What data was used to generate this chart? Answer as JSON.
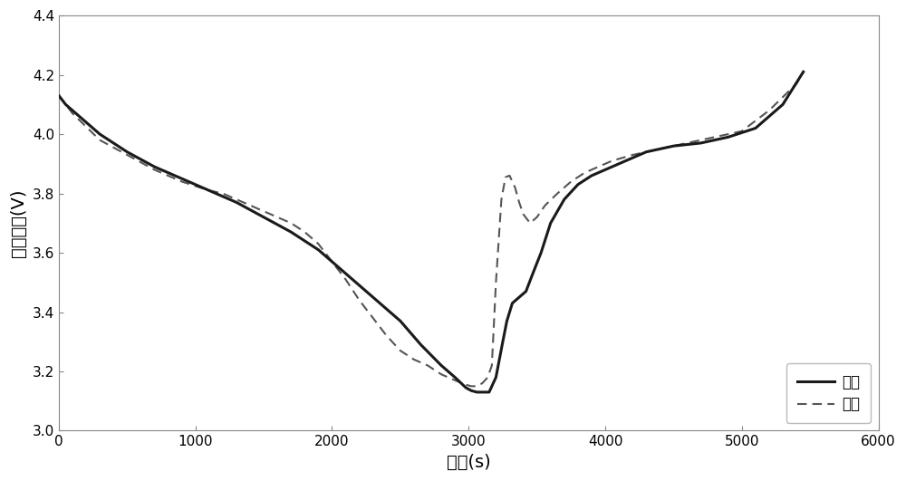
{
  "title": "",
  "xlabel": "时间(s)",
  "ylabel": "电压变化(V)",
  "xlim": [
    0,
    6000
  ],
  "ylim": [
    3.0,
    4.4
  ],
  "xticks": [
    0,
    1000,
    2000,
    3000,
    4000,
    5000,
    6000
  ],
  "yticks": [
    3.0,
    3.2,
    3.4,
    3.6,
    3.8,
    4.0,
    4.2,
    4.4
  ],
  "legend": [
    "模拟",
    "实验"
  ],
  "sim_x": [
    0,
    50,
    150,
    300,
    500,
    700,
    900,
    1100,
    1300,
    1500,
    1700,
    1900,
    2100,
    2300,
    2500,
    2650,
    2800,
    2900,
    2980,
    3020,
    3060,
    3100,
    3150,
    3200,
    3250,
    3280,
    3320,
    3370,
    3420,
    3470,
    3530,
    3600,
    3700,
    3800,
    3900,
    4000,
    4100,
    4200,
    4300,
    4500,
    4700,
    4900,
    5100,
    5300,
    5450
  ],
  "sim_y": [
    4.13,
    4.1,
    4.06,
    4.0,
    3.94,
    3.89,
    3.85,
    3.81,
    3.77,
    3.72,
    3.67,
    3.61,
    3.53,
    3.45,
    3.37,
    3.29,
    3.22,
    3.18,
    3.145,
    3.135,
    3.13,
    3.13,
    3.13,
    3.18,
    3.3,
    3.37,
    3.43,
    3.45,
    3.47,
    3.53,
    3.6,
    3.7,
    3.78,
    3.83,
    3.86,
    3.88,
    3.9,
    3.92,
    3.94,
    3.96,
    3.97,
    3.99,
    4.02,
    4.1,
    4.21
  ],
  "exp_x": [
    0,
    100,
    300,
    500,
    700,
    900,
    1100,
    1200,
    1300,
    1400,
    1500,
    1600,
    1700,
    1800,
    1900,
    2000,
    2100,
    2200,
    2300,
    2400,
    2500,
    2600,
    2700,
    2800,
    2900,
    2980,
    3020,
    3060,
    3100,
    3140,
    3170,
    3200,
    3240,
    3270,
    3300,
    3340,
    3370,
    3400,
    3450,
    3500,
    3560,
    3650,
    3750,
    3850,
    3950,
    4050,
    4200,
    4400,
    4600,
    4800,
    5000,
    5200,
    5400,
    5450
  ],
  "exp_y": [
    4.13,
    4.07,
    3.98,
    3.93,
    3.88,
    3.84,
    3.81,
    3.8,
    3.78,
    3.76,
    3.74,
    3.72,
    3.7,
    3.67,
    3.63,
    3.57,
    3.51,
    3.44,
    3.38,
    3.32,
    3.27,
    3.24,
    3.22,
    3.19,
    3.17,
    3.155,
    3.15,
    3.15,
    3.16,
    3.18,
    3.22,
    3.5,
    3.78,
    3.855,
    3.86,
    3.82,
    3.77,
    3.73,
    3.7,
    3.72,
    3.76,
    3.8,
    3.84,
    3.87,
    3.89,
    3.91,
    3.93,
    3.95,
    3.97,
    3.99,
    4.01,
    4.08,
    4.17,
    4.21
  ],
  "line_color": "#1a1a1a",
  "background_color": "#ffffff",
  "font_size_axis": 14,
  "font_size_tick": 11
}
